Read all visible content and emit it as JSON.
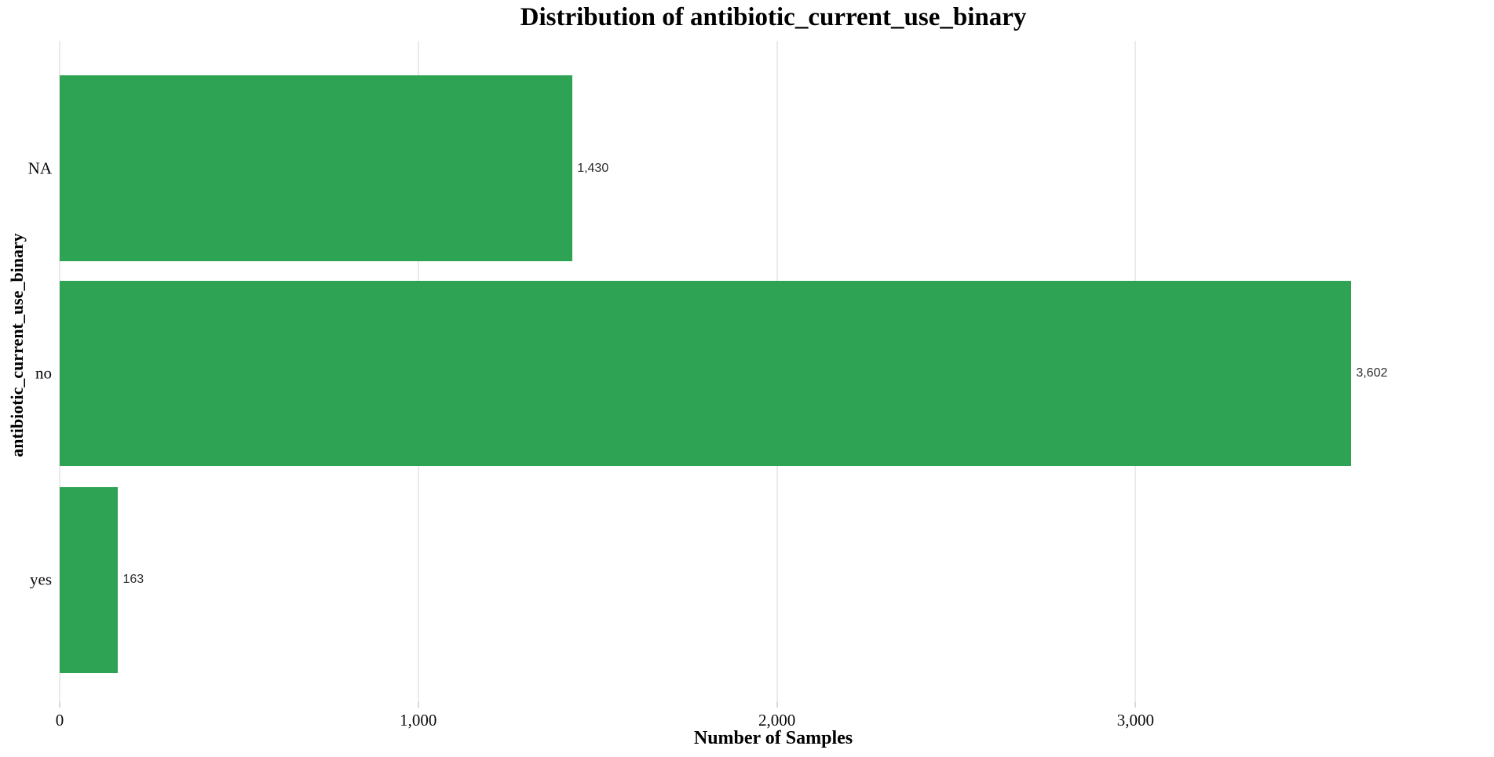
{
  "chart_data": {
    "type": "bar",
    "orientation": "horizontal",
    "title": "Distribution of antibiotic_current_use_binary",
    "categories": [
      "NA",
      "no",
      "yes"
    ],
    "values": [
      1430,
      3602,
      163
    ],
    "value_labels": [
      "1,430",
      "3,602",
      "163"
    ],
    "xlabel": "Number of Samples",
    "ylabel": "antibiotic_current_use_binary",
    "xlim": [
      0,
      3980
    ],
    "xticks": [
      {
        "value": 0,
        "label": "0"
      },
      {
        "value": 1000,
        "label": "1,000"
      },
      {
        "value": 2000,
        "label": "2,000"
      },
      {
        "value": 3000,
        "label": "3,000"
      }
    ],
    "grid": "vertical",
    "legend": "none",
    "colors": {
      "bar": "#2fa354",
      "gridline": "#ebebeb",
      "tick": "#d9d9d9",
      "value_label": "#2e2e2e",
      "text": "#000000",
      "background": "#ffffff"
    }
  }
}
